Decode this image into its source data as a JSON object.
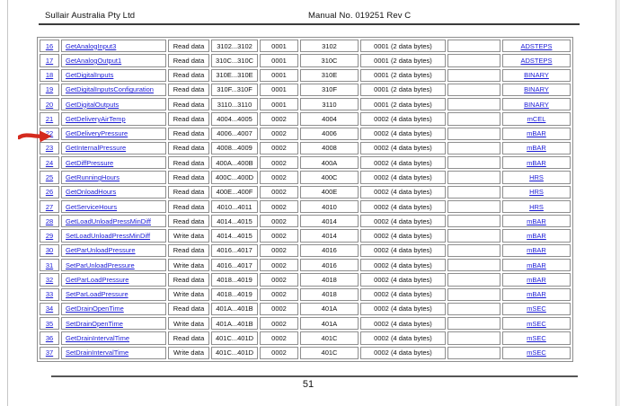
{
  "header": {
    "left": "Sullair Australia Pty Ltd",
    "right": "Manual No. 019251 Rev C"
  },
  "footer": {
    "page_number": "51"
  },
  "annotation": {
    "red_arrow_points_to_row": "22"
  },
  "colors": {
    "link_blue": "#1b1bd6",
    "arrow_red": "#d42a1e",
    "table_border": "#8e8e8e",
    "header_rule": "#3c3c3c"
  },
  "table": {
    "rows": [
      {
        "num": "16",
        "name": "GetAnalogInput3",
        "access": "Read data",
        "range": "3102...3102",
        "qty": "0001",
        "addr": "3102",
        "bytes": "0001 (2 data bytes)",
        "extra": "",
        "unit": "ADSTEPS"
      },
      {
        "num": "17",
        "name": "GetAnalogOutput1",
        "access": "Read data",
        "range": "310C...310C",
        "qty": "0001",
        "addr": "310C",
        "bytes": "0001 (2 data bytes)",
        "extra": "",
        "unit": "ADSTEPS"
      },
      {
        "num": "18",
        "name": "GetDigitalInputs",
        "access": "Read data",
        "range": "310E...310E",
        "qty": "0001",
        "addr": "310E",
        "bytes": "0001 (2 data bytes)",
        "extra": "",
        "unit": "BINARY"
      },
      {
        "num": "19",
        "name": "GetDigitalInputsConfiguration",
        "access": "Read data",
        "range": "310F...310F",
        "qty": "0001",
        "addr": "310F",
        "bytes": "0001 (2 data bytes)",
        "extra": "",
        "unit": "BINARY"
      },
      {
        "num": "20",
        "name": "GetDigitalOutputs",
        "access": "Read data",
        "range": "3110...3110",
        "qty": "0001",
        "addr": "3110",
        "bytes": "0001 (2 data bytes)",
        "extra": "",
        "unit": "BINARY"
      },
      {
        "num": "21",
        "name": "GetDeliveryAirTemp",
        "access": "Read data",
        "range": "4004...4005",
        "qty": "0002",
        "addr": "4004",
        "bytes": "0002 (4 data bytes)",
        "extra": "",
        "unit": "mCEL"
      },
      {
        "num": "22",
        "name": "GetDeliveryPressure",
        "access": "Read data",
        "range": "4006...4007",
        "qty": "0002",
        "addr": "4006",
        "bytes": "0002 (4 data bytes)",
        "extra": "",
        "unit": "mBAR"
      },
      {
        "num": "23",
        "name": "GetInternalPressure",
        "access": "Read data",
        "range": "4008...4009",
        "qty": "0002",
        "addr": "4008",
        "bytes": "0002 (4 data bytes)",
        "extra": "",
        "unit": "mBAR"
      },
      {
        "num": "24",
        "name": "GetDiffPressure",
        "access": "Read data",
        "range": "400A...400B",
        "qty": "0002",
        "addr": "400A",
        "bytes": "0002 (4 data bytes)",
        "extra": "",
        "unit": "mBAR"
      },
      {
        "num": "25",
        "name": "GetRunningHours",
        "access": "Read data",
        "range": "400C...400D",
        "qty": "0002",
        "addr": "400C",
        "bytes": "0002 (4 data bytes)",
        "extra": "",
        "unit": "HRS"
      },
      {
        "num": "26",
        "name": "GetOnloadHours",
        "access": "Read data",
        "range": "400E...400F",
        "qty": "0002",
        "addr": "400E",
        "bytes": "0002 (4 data bytes)",
        "extra": "",
        "unit": "HRS"
      },
      {
        "num": "27",
        "name": "GetServiceHours",
        "access": "Read data",
        "range": "4010...4011",
        "qty": "0002",
        "addr": "4010",
        "bytes": "0002 (4 data bytes)",
        "extra": "",
        "unit": "HRS"
      },
      {
        "num": "28",
        "name": "GetLoadUnloadPressMinDiff",
        "access": "Read data",
        "range": "4014...4015",
        "qty": "0002",
        "addr": "4014",
        "bytes": "0002 (4 data bytes)",
        "extra": "",
        "unit": "mBAR"
      },
      {
        "num": "29",
        "name": "SetLoadUnloadPressMinDiff",
        "access": "Write data",
        "range": "4014...4015",
        "qty": "0002",
        "addr": "4014",
        "bytes": "0002 (4 data bytes)",
        "extra": "",
        "unit": "mBAR"
      },
      {
        "num": "30",
        "name": "GetParUnloadPressure",
        "access": "Read data",
        "range": "4016...4017",
        "qty": "0002",
        "addr": "4016",
        "bytes": "0002 (4 data bytes)",
        "extra": "",
        "unit": "mBAR"
      },
      {
        "num": "31",
        "name": "SetParUnloadPressure",
        "access": "Write data",
        "range": "4016...4017",
        "qty": "0002",
        "addr": "4016",
        "bytes": "0002 (4 data bytes)",
        "extra": "",
        "unit": "mBAR"
      },
      {
        "num": "32",
        "name": "GetParLoadPressure",
        "access": "Read data",
        "range": "4018...4019",
        "qty": "0002",
        "addr": "4018",
        "bytes": "0002 (4 data bytes)",
        "extra": "",
        "unit": "mBAR"
      },
      {
        "num": "33",
        "name": "SetParLoadPressure",
        "access": "Write data",
        "range": "4018...4019",
        "qty": "0002",
        "addr": "4018",
        "bytes": "0002 (4 data bytes)",
        "extra": "",
        "unit": "mBAR"
      },
      {
        "num": "34",
        "name": "GetDrainOpenTime",
        "access": "Read data",
        "range": "401A...401B",
        "qty": "0002",
        "addr": "401A",
        "bytes": "0002 (4 data bytes)",
        "extra": "",
        "unit": "mSEC"
      },
      {
        "num": "35",
        "name": "SetDrainOpenTime",
        "access": "Write data",
        "range": "401A...401B",
        "qty": "0002",
        "addr": "401A",
        "bytes": "0002 (4 data bytes)",
        "extra": "",
        "unit": "mSEC"
      },
      {
        "num": "36",
        "name": "GetDrainIntervalTime",
        "access": "Read data",
        "range": "401C...401D",
        "qty": "0002",
        "addr": "401C",
        "bytes": "0002 (4 data bytes)",
        "extra": "",
        "unit": "mSEC"
      },
      {
        "num": "37",
        "name": "SetDrainIntervalTime",
        "access": "Write data",
        "range": "401C...401D",
        "qty": "0002",
        "addr": "401C",
        "bytes": "0002 (4 data bytes)",
        "extra": "",
        "unit": "mSEC"
      }
    ]
  }
}
